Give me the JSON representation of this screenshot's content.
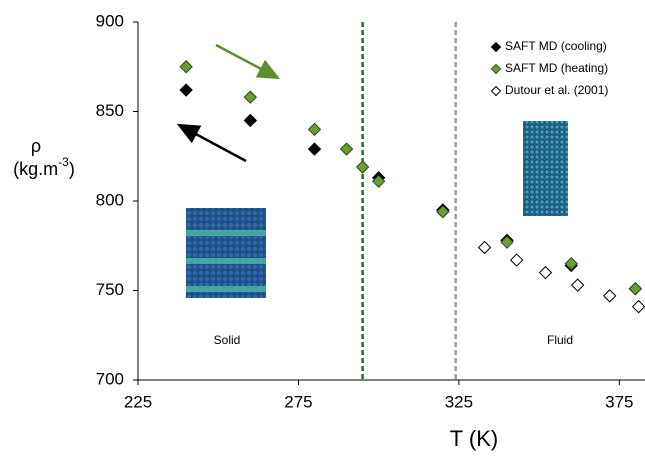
{
  "chart_data": {
    "type": "scatter",
    "x_label": "T (K)",
    "y_label": {
      "symbol": "ρ",
      "unit": "(kg.m",
      "superscript": "-3",
      "unit_end": ")"
    },
    "xlim": [
      225,
      383
    ],
    "ylim": [
      700,
      900
    ],
    "xticks": [
      225,
      275,
      325,
      375
    ],
    "yticks": [
      700,
      750,
      800,
      850,
      900
    ],
    "grid": false,
    "legend": "top-right",
    "series": [
      {
        "name": "SAFT MD (cooling)",
        "color": "#000000",
        "edge": "#000000",
        "x": [
          240,
          260,
          280,
          300,
          320,
          340,
          360,
          380
        ],
        "values": [
          862,
          845,
          829,
          813,
          795,
          778,
          764,
          751
        ]
      },
      {
        "name": "SAFT MD (heating)",
        "color": "#6a9c3a",
        "edge": "#2f4a1a",
        "x": [
          240,
          260,
          280,
          290,
          295,
          300,
          320,
          340,
          360,
          380
        ],
        "values": [
          875,
          858,
          840,
          829,
          819,
          811,
          794,
          777,
          765,
          751
        ]
      },
      {
        "name": "Dutour et al. (2001)",
        "color": "#ffffff",
        "edge": "#000000",
        "x": [
          333,
          343,
          352,
          362,
          372,
          381
        ],
        "values": [
          774,
          767,
          760,
          753,
          747,
          741
        ]
      }
    ],
    "reference_lines": [
      {
        "x": 295,
        "color": "#1a7a1a"
      },
      {
        "x": 324,
        "color": "#999999"
      }
    ],
    "annotations": [
      "Solid",
      "Fluid"
    ]
  }
}
